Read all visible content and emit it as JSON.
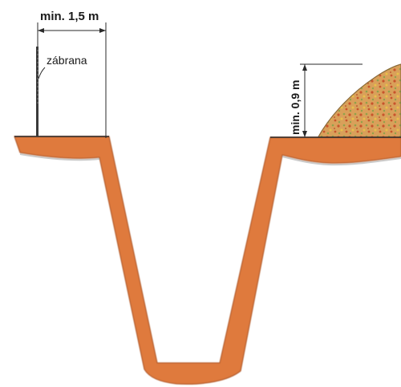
{
  "labels": {
    "barrier_distance": "min. 1,5 m",
    "barrier": "zábrana",
    "pile_height": "min. 0,9 m"
  },
  "colors": {
    "trench_fill": "#df7a3e",
    "trench_edge": "#b25a2a",
    "soil_base": "#d9a05a",
    "soil_speck_red": "#c8542c",
    "soil_speck_green": "#8fa24a",
    "soil_speck_yellow": "#e8c04a",
    "line": "#2a2a2a",
    "ground_shadow": "#9a9a9a"
  }
}
